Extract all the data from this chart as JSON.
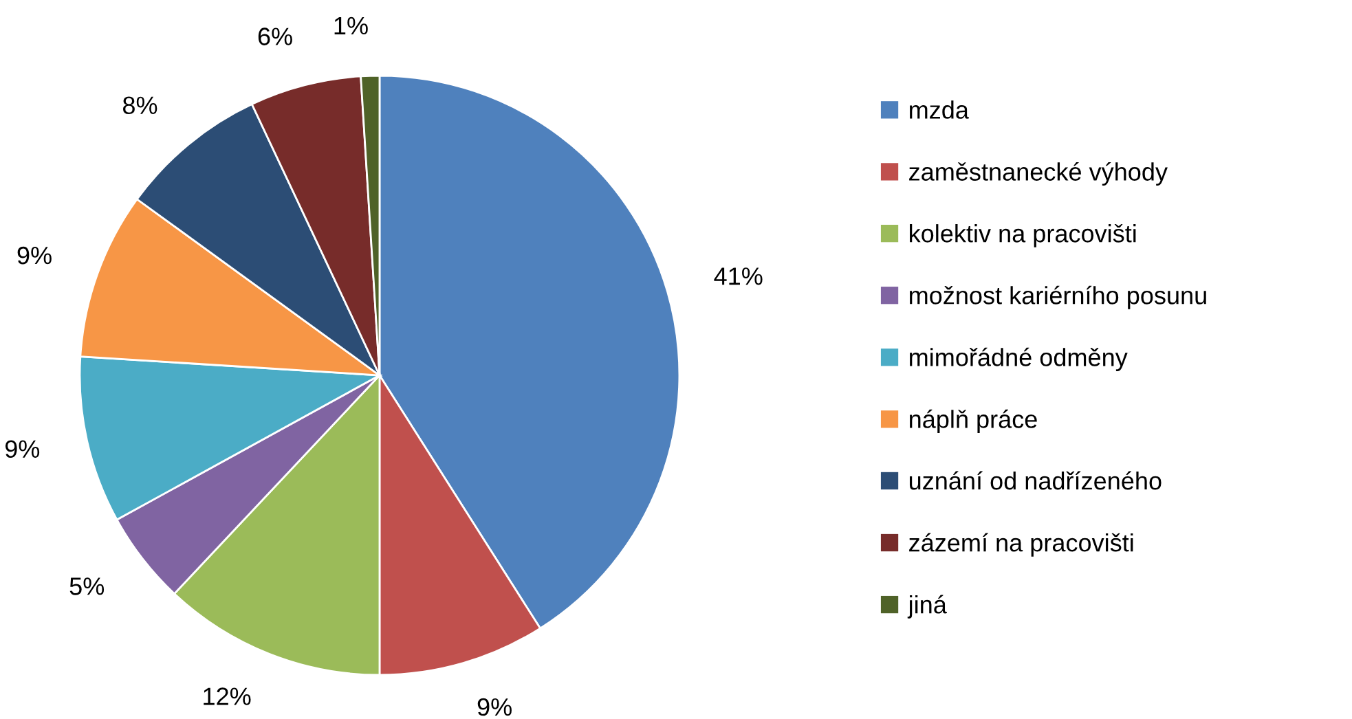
{
  "chart_data": {
    "type": "pie",
    "categories": [
      "mzda",
      "zaměstnanecké výhody",
      "kolektiv na pracovišti",
      "možnost kariérního posunu",
      "mimořádné odměny",
      "náplň práce",
      "uznání od nadřízeného",
      "zázemí na pracovišti",
      "jiná"
    ],
    "values": [
      41,
      9,
      12,
      5,
      9,
      9,
      8,
      6,
      1
    ],
    "value_labels": [
      "41%",
      "9%",
      "12%",
      "5%",
      "9%",
      "9%",
      "8%",
      "6%",
      "1%"
    ],
    "colors": [
      "#4f81bd",
      "#c0504d",
      "#9bbb59",
      "#8064a2",
      "#4bacc6",
      "#f79646",
      "#2c4d75",
      "#772c2a",
      "#4f6228"
    ],
    "legend": "right"
  }
}
